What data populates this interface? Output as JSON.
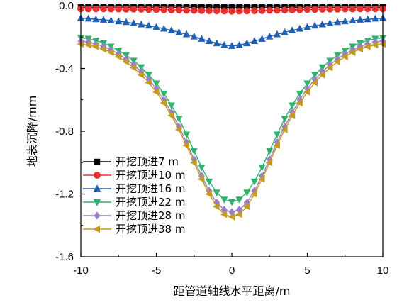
{
  "chart_data": {
    "type": "line",
    "xlabel": "距管道轴线水平距离/m",
    "ylabel": "地表沉降/mm",
    "xlim": [
      -10,
      10
    ],
    "ylim": [
      -1.6,
      0.0
    ],
    "xticks": [
      -10,
      -5,
      0,
      5,
      10
    ],
    "yticks": [
      0.0,
      -0.4,
      -0.8,
      -1.2,
      -1.6
    ],
    "xtick_labels": [
      "-10",
      "-5",
      "0",
      "5",
      "10"
    ],
    "ytick_labels": [
      "0.0",
      "-0.4",
      "-0.8",
      "-1.2",
      "-1.6"
    ],
    "grid": false,
    "legend_position": "bottom-left",
    "x": [
      -10,
      -9.5,
      -9,
      -8.5,
      -8,
      -7.5,
      -7,
      -6.5,
      -6,
      -5.5,
      -5,
      -4.5,
      -4,
      -3.5,
      -3,
      -2.5,
      -2,
      -1.5,
      -1,
      -0.5,
      0,
      0.5,
      1,
      1.5,
      2,
      2.5,
      3,
      3.5,
      4,
      4.5,
      5,
      5.5,
      6,
      6.5,
      7,
      7.5,
      8,
      8.5,
      9,
      9.5,
      10
    ],
    "series": [
      {
        "name": "开挖顶进7 m",
        "color": "#000000",
        "marker": "square",
        "values": [
          -0.01,
          -0.01,
          -0.01,
          -0.01,
          -0.01,
          -0.01,
          -0.01,
          -0.01,
          -0.01,
          -0.01,
          -0.01,
          -0.01,
          -0.01,
          -0.01,
          -0.01,
          -0.01,
          -0.01,
          -0.01,
          -0.01,
          -0.01,
          -0.01,
          -0.01,
          -0.01,
          -0.01,
          -0.01,
          -0.01,
          -0.01,
          -0.01,
          -0.01,
          -0.01,
          -0.01,
          -0.01,
          -0.01,
          -0.01,
          -0.01,
          -0.01,
          -0.01,
          -0.01,
          -0.01,
          -0.01,
          -0.01
        ]
      },
      {
        "name": "开挖顶进10 m",
        "color": "#e8312f",
        "marker": "circle",
        "values": [
          -0.02,
          -0.02,
          -0.02,
          -0.02,
          -0.021,
          -0.021,
          -0.022,
          -0.022,
          -0.023,
          -0.024,
          -0.025,
          -0.026,
          -0.027,
          -0.028,
          -0.029,
          -0.03,
          -0.031,
          -0.032,
          -0.033,
          -0.034,
          -0.035,
          -0.034,
          -0.033,
          -0.032,
          -0.031,
          -0.03,
          -0.029,
          -0.028,
          -0.027,
          -0.026,
          -0.025,
          -0.024,
          -0.023,
          -0.022,
          -0.022,
          -0.021,
          -0.021,
          -0.02,
          -0.02,
          -0.02,
          -0.02
        ]
      },
      {
        "name": "开挖顶进16 m",
        "color": "#1f5fb5",
        "marker": "triangle-up",
        "values": [
          -0.08,
          -0.083,
          -0.087,
          -0.09,
          -0.095,
          -0.1,
          -0.105,
          -0.112,
          -0.12,
          -0.128,
          -0.137,
          -0.147,
          -0.158,
          -0.17,
          -0.183,
          -0.197,
          -0.212,
          -0.226,
          -0.24,
          -0.251,
          -0.257,
          -0.251,
          -0.24,
          -0.226,
          -0.212,
          -0.197,
          -0.183,
          -0.17,
          -0.158,
          -0.147,
          -0.137,
          -0.128,
          -0.12,
          -0.112,
          -0.105,
          -0.1,
          -0.095,
          -0.09,
          -0.087,
          -0.083,
          -0.08
        ]
      },
      {
        "name": "开挖顶进22 m",
        "color": "#2db36b",
        "marker": "triangle-down",
        "values": [
          -0.205,
          -0.21,
          -0.222,
          -0.238,
          -0.26,
          -0.285,
          -0.315,
          -0.35,
          -0.392,
          -0.44,
          -0.495,
          -0.56,
          -0.635,
          -0.72,
          -0.82,
          -0.925,
          -1.03,
          -1.12,
          -1.19,
          -1.235,
          -1.25,
          -1.235,
          -1.19,
          -1.12,
          -1.03,
          -0.925,
          -0.82,
          -0.72,
          -0.635,
          -0.56,
          -0.495,
          -0.44,
          -0.392,
          -0.35,
          -0.315,
          -0.285,
          -0.26,
          -0.238,
          -0.222,
          -0.21,
          -0.205
        ]
      },
      {
        "name": "开挖顶进28 m",
        "color": "#9a7fc6",
        "marker": "diamond",
        "values": [
          -0.225,
          -0.232,
          -0.244,
          -0.26,
          -0.282,
          -0.308,
          -0.34,
          -0.377,
          -0.42,
          -0.47,
          -0.53,
          -0.6,
          -0.68,
          -0.77,
          -0.87,
          -0.98,
          -1.085,
          -1.18,
          -1.255,
          -1.3,
          -1.315,
          -1.3,
          -1.255,
          -1.18,
          -1.085,
          -0.98,
          -0.87,
          -0.77,
          -0.68,
          -0.6,
          -0.53,
          -0.47,
          -0.42,
          -0.377,
          -0.34,
          -0.308,
          -0.282,
          -0.26,
          -0.244,
          -0.232,
          -0.225
        ]
      },
      {
        "name": "开挖顶进38 m",
        "color": "#c49a22",
        "marker": "triangle-left",
        "values": [
          -0.245,
          -0.25,
          -0.261,
          -0.277,
          -0.298,
          -0.325,
          -0.357,
          -0.395,
          -0.44,
          -0.49,
          -0.55,
          -0.62,
          -0.7,
          -0.79,
          -0.89,
          -1.0,
          -1.105,
          -1.2,
          -1.28,
          -1.33,
          -1.345,
          -1.33,
          -1.28,
          -1.2,
          -1.105,
          -1.0,
          -0.89,
          -0.79,
          -0.7,
          -0.62,
          -0.55,
          -0.49,
          -0.44,
          -0.395,
          -0.357,
          -0.325,
          -0.298,
          -0.277,
          -0.261,
          -0.25,
          -0.245
        ]
      }
    ]
  }
}
